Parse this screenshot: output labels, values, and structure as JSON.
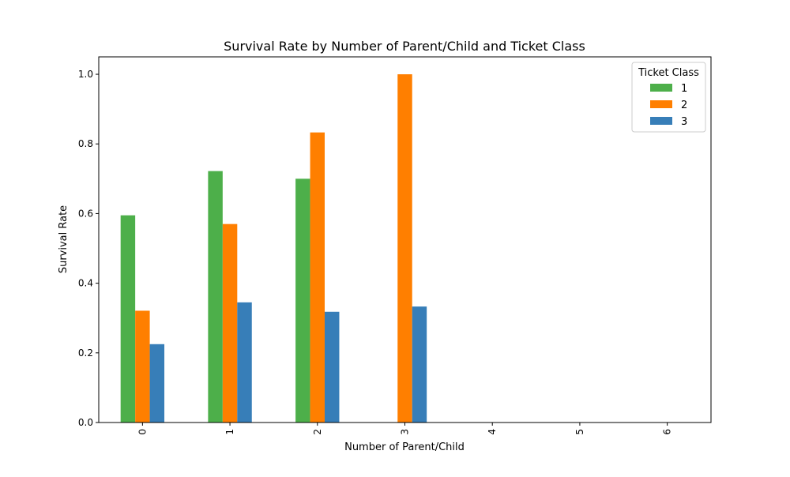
{
  "chart_data": {
    "type": "bar",
    "title": "Survival Rate by Number of Parent/Child and Ticket Class",
    "xlabel": "Number of Parent/Child",
    "ylabel": "Survival Rate",
    "categories": [
      "0",
      "1",
      "2",
      "3",
      "4",
      "5",
      "6"
    ],
    "series": [
      {
        "name": "1",
        "color": "#4daf4a",
        "values": [
          0.595,
          0.722,
          0.7,
          0.0,
          0.0,
          0.0,
          0.0
        ]
      },
      {
        "name": "2",
        "color": "#ff7f00",
        "values": [
          0.321,
          0.57,
          0.833,
          1.0,
          0.0,
          0.0,
          0.0
        ]
      },
      {
        "name": "3",
        "color": "#377eb8",
        "values": [
          0.225,
          0.345,
          0.318,
          0.333,
          0.0,
          0.0,
          0.0
        ]
      }
    ],
    "ylim": [
      0,
      1.05
    ],
    "yticks": [
      "0.0",
      "0.2",
      "0.4",
      "0.6",
      "0.8",
      "1.0"
    ],
    "grid": false,
    "legend": {
      "title": "Ticket Class",
      "position": "top-right"
    }
  }
}
